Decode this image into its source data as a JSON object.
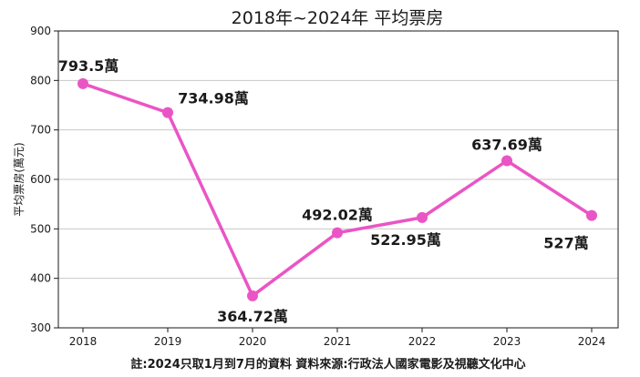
{
  "chart_data": {
    "type": "line",
    "title": "2018年~2024年 平均票房",
    "xlabel": "",
    "ylabel": "平均票房(萬元)",
    "x": [
      "2018",
      "2019",
      "2020",
      "2021",
      "2022",
      "2023",
      "2024"
    ],
    "series": [
      {
        "values": [
          793.5,
          734.98,
          364.72,
          492.02,
          522.95,
          637.69,
          527
        ],
        "data_labels": [
          "793.5萬",
          "734.98萬",
          "364.72萬",
          "492.02萬",
          "522.95萬",
          "637.69萬",
          "527萬"
        ],
        "color": "#ea55c5"
      }
    ],
    "ylim": [
      300,
      900
    ],
    "yticks": [
      300,
      400,
      500,
      600,
      700,
      800,
      900
    ],
    "grid": "horizontal",
    "legend": "none"
  },
  "footnote": "註:2024只取1月到7月的資料   資料來源:行政法人國家電影及視聽文化中心"
}
